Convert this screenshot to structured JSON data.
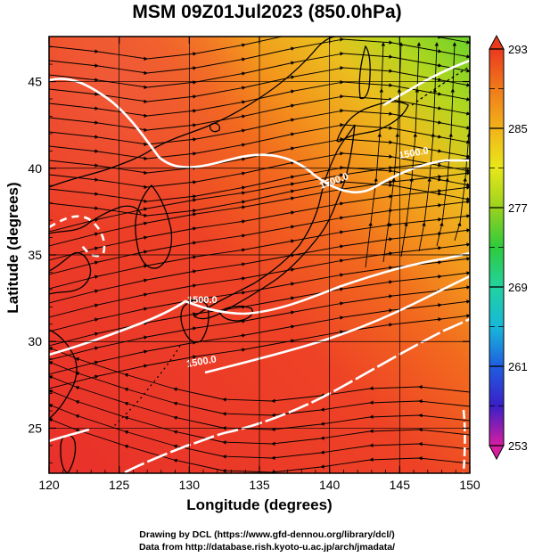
{
  "figure": {
    "title": "MSM 09Z01Jul2023 (850.0hPa)",
    "xlabel": "Longitude (degrees)",
    "ylabel": "Latitude  (degrees)",
    "credit_line1": "Drawing by DCL (https://www.gfd-dennou.org/library/dcl/)",
    "credit_line2": "Data from http://database.rish.kyoto-u.ac.jp/arch/jmadata/"
  },
  "map": {
    "lon_range": [
      120,
      150
    ],
    "lat_range": [
      22.4,
      47.6
    ],
    "lon_ticks": [
      "120",
      "125",
      "130",
      "135",
      "140",
      "145",
      "150"
    ],
    "lat_ticks": [
      "25",
      "30",
      "35",
      "40",
      "45"
    ],
    "grid_lon": [
      125,
      130,
      135,
      140,
      145
    ],
    "grid_lat": [
      25,
      30,
      35,
      40,
      45
    ],
    "contour_labels": [
      "1500.0",
      "1500.0",
      "1500.0",
      "1500.0"
    ],
    "colorbar": {
      "labels": [
        "293",
        "285",
        "277",
        "269",
        "261",
        "253"
      ],
      "min": 253,
      "max": 293,
      "colors": [
        "#d81ea0",
        "#3a1fc8",
        "#1f5ee0",
        "#17b8d8",
        "#22d2a0",
        "#2ecb3c",
        "#9ad21e",
        "#e8e81a",
        "#f2b21a",
        "#f07a1a",
        "#ea3a1e"
      ]
    }
  }
}
